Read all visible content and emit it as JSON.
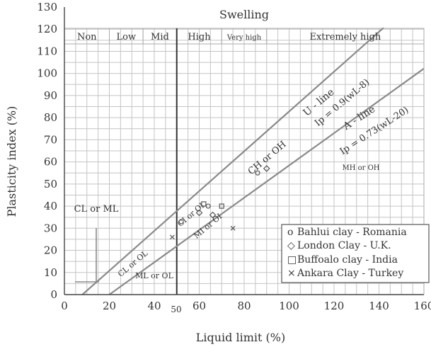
{
  "chart_data": {
    "type": "line",
    "xlabel": "Liquid limit (%)",
    "ylabel": "Plasticity index (%)",
    "xlim": [
      0,
      160
    ],
    "ylim": [
      0,
      130
    ],
    "xticks": [
      0,
      20,
      40,
      60,
      80,
      100,
      120,
      140,
      160
    ],
    "yticks": [
      0,
      10,
      20,
      30,
      40,
      50,
      60,
      70,
      80,
      90,
      100,
      110,
      120,
      130
    ],
    "x_tick_labels": [
      "0",
      "20",
      "40",
      "60",
      "80",
      "100",
      "120",
      "140",
      "160"
    ],
    "y_tick_labels": [
      "0",
      "10",
      "20",
      "30",
      "40",
      "50",
      "60",
      "70",
      "80",
      "90",
      "100",
      "110",
      "120",
      "130"
    ],
    "grid": true,
    "extra_x_label": "50",
    "swelling": {
      "title": "Swelling",
      "zones": [
        {
          "label": "Non",
          "from": 0,
          "to": 20
        },
        {
          "label": "Low",
          "from": 20,
          "to": 35
        },
        {
          "label": "Mid",
          "from": 35,
          "to": 50
        },
        {
          "label": "High",
          "from": 50,
          "to": 70
        },
        {
          "label": "Very high",
          "from": 70,
          "to": 90
        },
        {
          "label": "Extremely high",
          "from": 90,
          "to": 160
        }
      ]
    },
    "lines": [
      {
        "name": "U - line",
        "equation": "Ip = 0.9(wL-8)",
        "x": [
          8,
          142
        ],
        "y": [
          0,
          120.6
        ]
      },
      {
        "name": "A - line",
        "equation": "Ip = 0.73(wL-20)",
        "x": [
          20,
          160
        ],
        "y": [
          0,
          102.2
        ]
      }
    ],
    "zone_labels": [
      "CL or ML",
      "CL or OL",
      "ML or OL",
      "CI or OI",
      "MI or OI",
      "CH or OH",
      "MH or OH"
    ],
    "legend": {
      "position": "bottom-right",
      "entries": [
        {
          "marker": "o",
          "label": "Bahlui clay - Romania"
        },
        {
          "marker": "◇",
          "label": "London Clay - U.K."
        },
        {
          "marker": "□",
          "label": "Buffoalo clay - India"
        },
        {
          "marker": "×",
          "label": "Ankara Clay - Turkey"
        }
      ]
    },
    "points": [
      {
        "series": "Bahlui clay - Romania",
        "x": 52,
        "y": 33
      },
      {
        "series": "Bahlui clay - Romania",
        "x": 64,
        "y": 40
      },
      {
        "series": "Bahlui clay - Romania",
        "x": 86,
        "y": 55
      },
      {
        "series": "London Clay - U.K.",
        "x": 60,
        "y": 37
      },
      {
        "series": "London Clay - U.K.",
        "x": 66,
        "y": 36
      },
      {
        "series": "London Clay - U.K.",
        "x": 90,
        "y": 57
      },
      {
        "series": "Buffoalo clay - India",
        "x": 70,
        "y": 40
      },
      {
        "series": "Buffoalo clay - India",
        "x": 62,
        "y": 41
      },
      {
        "series": "Ankara Clay - Turkey",
        "x": 75,
        "y": 30
      },
      {
        "series": "Ankara Clay - Turkey",
        "x": 48,
        "y": 26
      }
    ],
    "colors": {
      "grid": "#c4c4c4",
      "lines": "#8a8a8a",
      "text": "#333333"
    }
  }
}
